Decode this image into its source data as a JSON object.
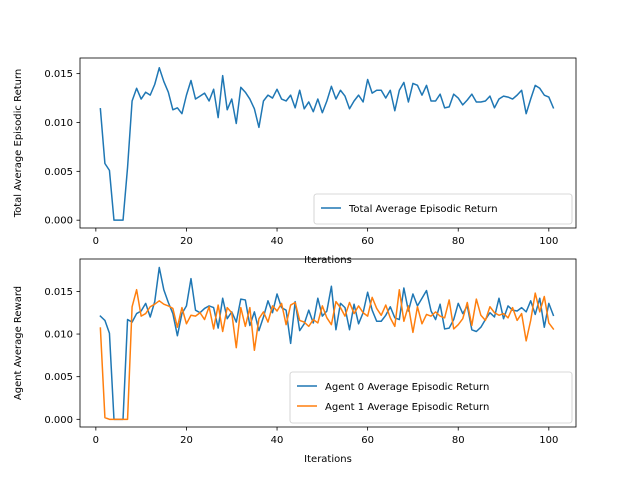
{
  "chart_data": [
    {
      "type": "line",
      "title": "",
      "xlabel": "Iterations",
      "ylabel": "Total Average Episodic Return",
      "xlim": [
        -3.5,
        106
      ],
      "ylim": [
        -0.0008,
        0.0166
      ],
      "xticks": [
        0,
        20,
        40,
        60,
        80,
        100
      ],
      "yticks": [
        0.0,
        0.005,
        0.01,
        0.015
      ],
      "ytick_labels": [
        "0.000",
        "0.005",
        "0.010",
        "0.015"
      ],
      "grid": false,
      "legend_position": "lower right",
      "series": [
        {
          "name": "Total Average Episodic Return",
          "color": "#1f77b4",
          "x": [
            1,
            2,
            3,
            4,
            5,
            6,
            7,
            8,
            9,
            10,
            11,
            12,
            13,
            14,
            15,
            16,
            17,
            18,
            19,
            20,
            21,
            22,
            23,
            24,
            25,
            26,
            27,
            28,
            29,
            30,
            31,
            32,
            33,
            34,
            35,
            36,
            37,
            38,
            39,
            40,
            41,
            42,
            43,
            44,
            45,
            46,
            47,
            48,
            49,
            50,
            51,
            52,
            53,
            54,
            55,
            56,
            57,
            58,
            59,
            60,
            61,
            62,
            63,
            64,
            65,
            66,
            67,
            68,
            69,
            70,
            71,
            72,
            73,
            74,
            75,
            76,
            77,
            78,
            79,
            80,
            81,
            82,
            83,
            84,
            85,
            86,
            87,
            88,
            89,
            90,
            91,
            92,
            93,
            94,
            95,
            96,
            97,
            98,
            99,
            100,
            101
          ],
          "values": [
            0.0114,
            0.0058,
            0.0051,
            0.0,
            0.0,
            0.0,
            0.0054,
            0.0122,
            0.0135,
            0.0124,
            0.0131,
            0.0128,
            0.0139,
            0.0156,
            0.0142,
            0.0131,
            0.0113,
            0.0115,
            0.0109,
            0.0128,
            0.0143,
            0.0124,
            0.0127,
            0.013,
            0.0122,
            0.0134,
            0.0105,
            0.0148,
            0.0113,
            0.0124,
            0.0099,
            0.0136,
            0.0131,
            0.0124,
            0.0114,
            0.0095,
            0.0122,
            0.0128,
            0.0125,
            0.0134,
            0.0124,
            0.0122,
            0.0128,
            0.0115,
            0.0133,
            0.0114,
            0.0121,
            0.0111,
            0.0124,
            0.011,
            0.0122,
            0.0137,
            0.0124,
            0.0133,
            0.0127,
            0.0114,
            0.0122,
            0.0128,
            0.0121,
            0.0144,
            0.013,
            0.0133,
            0.0133,
            0.0125,
            0.0133,
            0.0112,
            0.0133,
            0.0141,
            0.0121,
            0.014,
            0.0138,
            0.0128,
            0.0138,
            0.0122,
            0.0122,
            0.0129,
            0.0115,
            0.0116,
            0.0129,
            0.0125,
            0.0118,
            0.0123,
            0.0129,
            0.0121,
            0.0121,
            0.0122,
            0.0127,
            0.0115,
            0.0124,
            0.0127,
            0.0126,
            0.0124,
            0.0128,
            0.0133,
            0.0109,
            0.0124,
            0.0138,
            0.0135,
            0.0128,
            0.0126,
            0.0115
          ]
        }
      ]
    },
    {
      "type": "line",
      "title": "",
      "xlabel": "Iterations",
      "ylabel": "Agent Average Reward",
      "xlim": [
        -3.5,
        106
      ],
      "ylim": [
        -0.0009,
        0.0188
      ],
      "xticks": [
        0,
        20,
        40,
        60,
        80,
        100
      ],
      "yticks": [
        0.0,
        0.005,
        0.01,
        0.015
      ],
      "ytick_labels": [
        "0.000",
        "0.005",
        "0.010",
        "0.015"
      ],
      "grid": false,
      "legend_position": "lower right",
      "series": [
        {
          "name": "Agent 0 Average Episodic Return",
          "color": "#1f77b4",
          "x": [
            1,
            2,
            3,
            4,
            5,
            6,
            7,
            8,
            9,
            10,
            11,
            12,
            13,
            14,
            15,
            16,
            17,
            18,
            19,
            20,
            21,
            22,
            23,
            24,
            25,
            26,
            27,
            28,
            29,
            30,
            31,
            32,
            33,
            34,
            35,
            36,
            37,
            38,
            39,
            40,
            41,
            42,
            43,
            44,
            45,
            46,
            47,
            48,
            49,
            50,
            51,
            52,
            53,
            54,
            55,
            56,
            57,
            58,
            59,
            60,
            61,
            62,
            63,
            64,
            65,
            66,
            67,
            68,
            69,
            70,
            71,
            72,
            73,
            74,
            75,
            76,
            77,
            78,
            79,
            80,
            81,
            82,
            83,
            84,
            85,
            86,
            87,
            88,
            89,
            90,
            91,
            92,
            93,
            94,
            95,
            96,
            97,
            98,
            99,
            100,
            101
          ],
          "values": [
            0.0121,
            0.0116,
            0.0101,
            0.0,
            0.0,
            0.0,
            0.0117,
            0.0114,
            0.0124,
            0.0127,
            0.0136,
            0.012,
            0.0138,
            0.0178,
            0.0152,
            0.0137,
            0.0124,
            0.0098,
            0.0124,
            0.0133,
            0.0165,
            0.0128,
            0.0125,
            0.013,
            0.0133,
            0.0131,
            0.0107,
            0.0142,
            0.0118,
            0.0126,
            0.0114,
            0.0141,
            0.014,
            0.011,
            0.0126,
            0.0104,
            0.012,
            0.0139,
            0.0125,
            0.0147,
            0.0131,
            0.0128,
            0.0089,
            0.0138,
            0.0104,
            0.0112,
            0.0128,
            0.0113,
            0.0142,
            0.0121,
            0.0127,
            0.0156,
            0.0105,
            0.0136,
            0.0131,
            0.0105,
            0.0135,
            0.0112,
            0.0125,
            0.0149,
            0.0128,
            0.0115,
            0.0115,
            0.0122,
            0.0132,
            0.0119,
            0.0117,
            0.0154,
            0.0127,
            0.0147,
            0.0133,
            0.0142,
            0.0151,
            0.0127,
            0.0117,
            0.0135,
            0.0106,
            0.0107,
            0.0117,
            0.0136,
            0.0124,
            0.0133,
            0.0105,
            0.0103,
            0.0108,
            0.0117,
            0.0125,
            0.012,
            0.0142,
            0.0118,
            0.0133,
            0.0128,
            0.0127,
            0.0131,
            0.0126,
            0.0139,
            0.0123,
            0.0142,
            0.0108,
            0.0136,
            0.0122
          ]
        },
        {
          "name": "Agent 1 Average Episodic Return",
          "color": "#ff7f0e",
          "x": [
            1,
            2,
            3,
            4,
            5,
            6,
            7,
            8,
            9,
            10,
            11,
            12,
            13,
            14,
            15,
            16,
            17,
            18,
            19,
            20,
            21,
            22,
            23,
            24,
            25,
            26,
            27,
            28,
            29,
            30,
            31,
            32,
            33,
            34,
            35,
            36,
            37,
            38,
            39,
            40,
            41,
            42,
            43,
            44,
            45,
            46,
            47,
            48,
            49,
            50,
            51,
            52,
            53,
            54,
            55,
            56,
            57,
            58,
            59,
            60,
            61,
            62,
            63,
            64,
            65,
            66,
            67,
            68,
            69,
            70,
            71,
            72,
            73,
            74,
            75,
            76,
            77,
            78,
            79,
            80,
            81,
            82,
            83,
            84,
            85,
            86,
            87,
            88,
            89,
            90,
            91,
            92,
            93,
            94,
            95,
            96,
            97,
            98,
            99,
            100,
            101
          ],
          "values": [
            0.0107,
            0.0002,
            0.0,
            0.0,
            0.0,
            0.0,
            0.0,
            0.0132,
            0.0152,
            0.0121,
            0.0124,
            0.0132,
            0.0135,
            0.0139,
            0.0135,
            0.0133,
            0.013,
            0.0108,
            0.0131,
            0.0112,
            0.0122,
            0.0121,
            0.0125,
            0.0117,
            0.0132,
            0.0106,
            0.0134,
            0.0103,
            0.0131,
            0.0125,
            0.0084,
            0.0131,
            0.0109,
            0.0131,
            0.0081,
            0.0118,
            0.0126,
            0.0114,
            0.0133,
            0.0127,
            0.0136,
            0.0111,
            0.0134,
            0.0137,
            0.0116,
            0.0114,
            0.0109,
            0.0117,
            0.0113,
            0.0133,
            0.0119,
            0.0111,
            0.0138,
            0.0131,
            0.0121,
            0.0137,
            0.0124,
            0.0133,
            0.0125,
            0.0121,
            0.0143,
            0.013,
            0.0122,
            0.0134,
            0.0119,
            0.0109,
            0.0152,
            0.0115,
            0.0133,
            0.0102,
            0.0132,
            0.0112,
            0.0123,
            0.0121,
            0.0126,
            0.0121,
            0.0119,
            0.014,
            0.0106,
            0.0111,
            0.0118,
            0.0137,
            0.011,
            0.0141,
            0.0122,
            0.0116,
            0.0132,
            0.0125,
            0.0122,
            0.0124,
            0.0119,
            0.0131,
            0.0116,
            0.0124,
            0.0092,
            0.0116,
            0.0148,
            0.0126,
            0.0144,
            0.0113,
            0.0106
          ]
        }
      ]
    }
  ]
}
